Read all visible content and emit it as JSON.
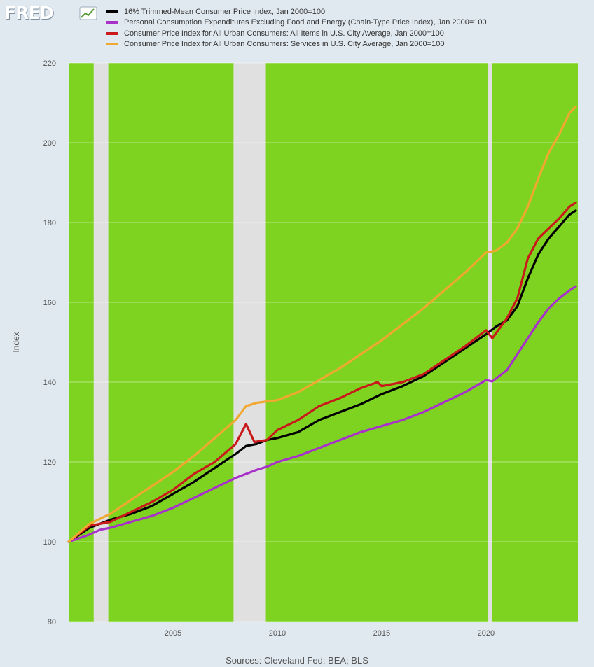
{
  "logo": {
    "text": "FRED"
  },
  "colors": {
    "background": "#e1e9f0",
    "recession_shading": "#e0e0e0",
    "plot_fill": "#7ed321"
  },
  "chart_data": {
    "type": "line",
    "title": "",
    "xlabel": "",
    "ylabel": "Index",
    "xlim": [
      2000.0,
      2024.4
    ],
    "ylim": [
      80,
      220
    ],
    "y_ticks": [
      80,
      100,
      120,
      140,
      160,
      180,
      200,
      220
    ],
    "x_ticks": [
      2005,
      2010,
      2015,
      2020
    ],
    "grid": true,
    "legend_placement": "top-left",
    "recessions": [
      [
        2001.2,
        2001.9
      ],
      [
        2007.9,
        2009.45
      ],
      [
        2020.1,
        2020.3
      ]
    ],
    "series": [
      {
        "name": "16% Trimmed-Mean Consumer Price Index, Jan 2000=100",
        "color": "#000000",
        "points": [
          [
            2000.0,
            100
          ],
          [
            2001,
            103.5
          ],
          [
            2002,
            105.5
          ],
          [
            2003,
            107
          ],
          [
            2004,
            109
          ],
          [
            2005,
            112
          ],
          [
            2006,
            115
          ],
          [
            2007,
            118.5
          ],
          [
            2008,
            122
          ],
          [
            2008.5,
            124
          ],
          [
            2009,
            124.5
          ],
          [
            2009.5,
            125.5
          ],
          [
            2010,
            126
          ],
          [
            2011,
            127.5
          ],
          [
            2012,
            130.5
          ],
          [
            2013,
            132.5
          ],
          [
            2014,
            134.5
          ],
          [
            2015,
            137
          ],
          [
            2016,
            139
          ],
          [
            2017,
            141.5
          ],
          [
            2018,
            145
          ],
          [
            2019,
            148.5
          ],
          [
            2020,
            152
          ],
          [
            2020.5,
            154
          ],
          [
            2021,
            155.5
          ],
          [
            2021.5,
            159
          ],
          [
            2022,
            166
          ],
          [
            2022.5,
            172
          ],
          [
            2023,
            176
          ],
          [
            2023.5,
            179
          ],
          [
            2024,
            182
          ],
          [
            2024.3,
            183
          ]
        ]
      },
      {
        "name": "Personal Consumption Expenditures Excluding Food and Energy (Chain-Type Price Index), Jan 2000=100",
        "color": "#a832c9",
        "points": [
          [
            2000.0,
            100
          ],
          [
            2001,
            101.8
          ],
          [
            2001.5,
            103
          ],
          [
            2002,
            103.5
          ],
          [
            2003,
            105
          ],
          [
            2004,
            106.5
          ],
          [
            2005,
            108.5
          ],
          [
            2006,
            111
          ],
          [
            2007,
            113.5
          ],
          [
            2008,
            116
          ],
          [
            2009,
            118
          ],
          [
            2009.5,
            118.8
          ],
          [
            2010,
            120
          ],
          [
            2011,
            121.5
          ],
          [
            2012,
            123.5
          ],
          [
            2013,
            125.5
          ],
          [
            2014,
            127.5
          ],
          [
            2015,
            129
          ],
          [
            2016,
            130.5
          ],
          [
            2017,
            132.5
          ],
          [
            2018,
            135
          ],
          [
            2019,
            137.5
          ],
          [
            2020,
            140.5
          ],
          [
            2020.3,
            140.2
          ],
          [
            2021,
            143
          ],
          [
            2021.5,
            147
          ],
          [
            2022,
            151
          ],
          [
            2022.5,
            155
          ],
          [
            2023,
            158.5
          ],
          [
            2023.5,
            161
          ],
          [
            2024,
            163
          ],
          [
            2024.3,
            164
          ]
        ]
      },
      {
        "name": "Consumer Price Index for All Urban Consumers: All Items in U.S. City Average, Jan 2000=100",
        "color": "#c81a1a",
        "points": [
          [
            2000.0,
            100
          ],
          [
            2001,
            104
          ],
          [
            2002,
            105
          ],
          [
            2003,
            107.5
          ],
          [
            2004,
            110
          ],
          [
            2005,
            113
          ],
          [
            2006,
            117
          ],
          [
            2007,
            120
          ],
          [
            2008,
            124.5
          ],
          [
            2008.5,
            129.5
          ],
          [
            2008.9,
            125
          ],
          [
            2009.5,
            125.5
          ],
          [
            2010,
            128
          ],
          [
            2011,
            130.5
          ],
          [
            2012,
            134
          ],
          [
            2013,
            136
          ],
          [
            2014,
            138.5
          ],
          [
            2014.8,
            140
          ],
          [
            2015,
            139
          ],
          [
            2016,
            140
          ],
          [
            2017,
            142
          ],
          [
            2018,
            145.5
          ],
          [
            2019,
            149
          ],
          [
            2020,
            153
          ],
          [
            2020.3,
            151
          ],
          [
            2021,
            156
          ],
          [
            2021.5,
            161
          ],
          [
            2022,
            171
          ],
          [
            2022.5,
            176
          ],
          [
            2023,
            178.5
          ],
          [
            2023.5,
            181
          ],
          [
            2024,
            184
          ],
          [
            2024.3,
            185
          ]
        ]
      },
      {
        "name": "Consumer Price Index for All Urban Consumers: Services in U.S. City Average, Jan 2000=100",
        "color": "#f0a830",
        "points": [
          [
            2000.0,
            100
          ],
          [
            2001,
            104.5
          ],
          [
            2002,
            107
          ],
          [
            2003,
            110.5
          ],
          [
            2004,
            114
          ],
          [
            2005,
            117.5
          ],
          [
            2006,
            121.5
          ],
          [
            2007,
            126
          ],
          [
            2008,
            130.5
          ],
          [
            2008.5,
            134
          ],
          [
            2009,
            134.8
          ],
          [
            2010,
            135.5
          ],
          [
            2011,
            137.5
          ],
          [
            2012,
            140.5
          ],
          [
            2013,
            143.5
          ],
          [
            2014,
            147
          ],
          [
            2015,
            150.5
          ],
          [
            2016,
            154.5
          ],
          [
            2017,
            158.5
          ],
          [
            2018,
            163
          ],
          [
            2019,
            167.5
          ],
          [
            2020,
            172.5
          ],
          [
            2020.5,
            173
          ],
          [
            2021,
            175
          ],
          [
            2021.5,
            178.5
          ],
          [
            2022,
            184
          ],
          [
            2022.5,
            191
          ],
          [
            2023,
            197.5
          ],
          [
            2023.5,
            202
          ],
          [
            2024,
            207.5
          ],
          [
            2024.3,
            209
          ]
        ]
      }
    ]
  },
  "source": "Sources: Cleveland Fed; BEA; BLS"
}
